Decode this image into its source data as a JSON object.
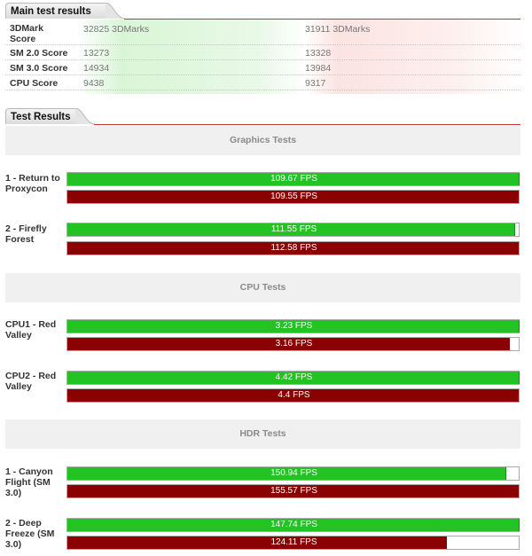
{
  "main_section": {
    "title": "Main test results"
  },
  "main_rows": [
    {
      "label": "3DMark Score",
      "a": "32825 3DMarks",
      "b": "31911 3DMarks"
    },
    {
      "label": "SM 2.0 Score",
      "a": "13273",
      "b": "13328"
    },
    {
      "label": "SM 3.0 Score",
      "a": "14934",
      "b": "13984"
    },
    {
      "label": "CPU Score",
      "a": "9438",
      "b": "9317"
    }
  ],
  "colors": {
    "green": "#22c322",
    "red": "#8b0000",
    "accent_line": "#c0392b"
  },
  "test_section": {
    "title": "Test Results",
    "categories": [
      {
        "name": "Graphics Tests",
        "tests": [
          {
            "label": "1 - Return to Proxycon",
            "green_fps": "109.67 FPS",
            "red_fps": "109.55 FPS",
            "green_frac": 1.0,
            "red_frac": 1.0
          },
          {
            "label": "2 - Firefly Forest",
            "green_fps": "111.55 FPS",
            "red_fps": "112.58 FPS",
            "green_frac": 0.99,
            "red_frac": 1.0
          }
        ]
      },
      {
        "name": "CPU Tests",
        "tests": [
          {
            "label": "CPU1 - Red Valley",
            "green_fps": "3.23 FPS",
            "red_fps": "3.16 FPS",
            "green_frac": 1.0,
            "red_frac": 0.98
          },
          {
            "label": "CPU2 - Red Valley",
            "green_fps": "4.42 FPS",
            "red_fps": "4.4 FPS",
            "green_frac": 1.0,
            "red_frac": 1.0
          }
        ]
      },
      {
        "name": "HDR Tests",
        "tests": [
          {
            "label": "1 - Canyon Flight (SM 3.0)",
            "green_fps": "150.94 FPS",
            "red_fps": "155.57 FPS",
            "green_frac": 0.97,
            "red_frac": 1.0
          },
          {
            "label": "2 - Deep Freeze (SM 3.0)",
            "green_fps": "147.74 FPS",
            "red_fps": "124.11 FPS",
            "green_frac": 1.0,
            "red_frac": 0.84
          }
        ]
      }
    ]
  }
}
